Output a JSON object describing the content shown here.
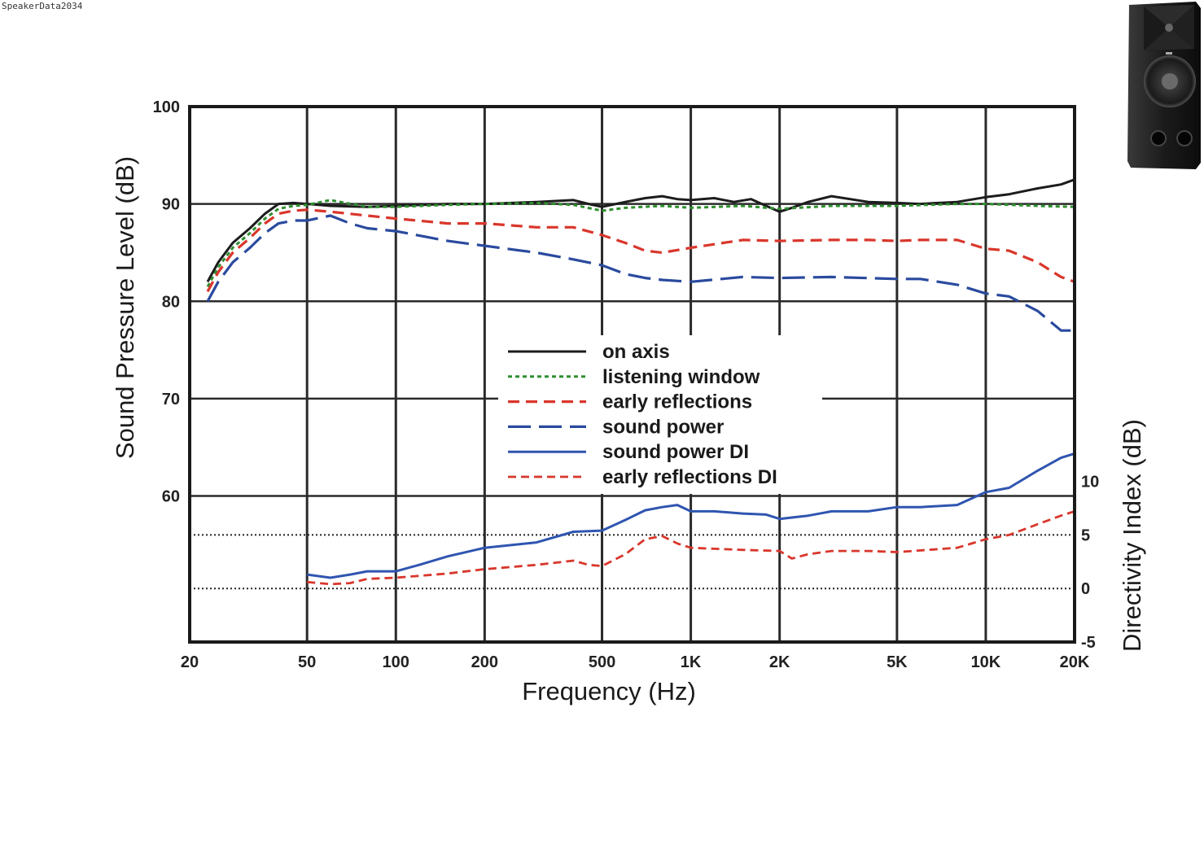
{
  "watermark": "SpeakerData2034",
  "colors": {
    "on_axis": "#1c1c1c",
    "listening_window": "#2f8f2f",
    "early_reflections": "#d9362b",
    "sound_power": "#2a4a9e",
    "sound_power_di": "#2f55b0",
    "early_reflections_di": "#d9362b",
    "grid": "#2a2a2a"
  },
  "chart_data": {
    "type": "line",
    "title": "",
    "xlabel": "Frequency (Hz)",
    "ylabel": "Sound Pressure Level (dB)",
    "y2label": "Directivity Index (dB)",
    "xscale": "log",
    "xlim": [
      20,
      20000
    ],
    "ylim": [
      45,
      100
    ],
    "y2lim": [
      -5,
      45
    ],
    "grid": true,
    "legend_position": "center",
    "x_ticks": [
      20,
      50,
      100,
      200,
      500,
      1000,
      2000,
      5000,
      10000,
      20000
    ],
    "x_tick_labels": [
      "20",
      "50",
      "100",
      "200",
      "500",
      "1K",
      "2K",
      "5K",
      "10K",
      "20K"
    ],
    "y_ticks": [
      60,
      70,
      80,
      90,
      100
    ],
    "y_tick_labels": [
      "60",
      "70",
      "80",
      "90",
      "100"
    ],
    "y2_ticks": [
      -5,
      0,
      5,
      10
    ],
    "y2_tick_labels": [
      "-5",
      "0",
      "5",
      "10"
    ],
    "series": [
      {
        "name": "on axis",
        "axis": "left",
        "style": "solid",
        "x": [
          23,
          25,
          28,
          32,
          36,
          40,
          45,
          50,
          60,
          80,
          100,
          150,
          200,
          300,
          400,
          450,
          500,
          600,
          700,
          800,
          900,
          1000,
          1200,
          1400,
          1600,
          1800,
          2000,
          2200,
          2500,
          3000,
          4000,
          5000,
          6000,
          8000,
          10000,
          12000,
          15000,
          18000,
          20000
        ],
        "y": [
          82,
          84,
          86,
          87.5,
          89,
          90,
          90.1,
          90,
          89.8,
          89.7,
          89.8,
          90,
          90,
          90.2,
          90.4,
          90,
          89.7,
          90.2,
          90.6,
          90.8,
          90.5,
          90.4,
          90.6,
          90.2,
          90.5,
          89.8,
          89.2,
          89.6,
          90.2,
          90.8,
          90.2,
          90.1,
          90,
          90.2,
          90.7,
          91,
          91.6,
          92,
          92.5
        ]
      },
      {
        "name": "listening window",
        "axis": "left",
        "style": "dotted",
        "x": [
          23,
          25,
          28,
          32,
          36,
          40,
          45,
          50,
          60,
          80,
          100,
          150,
          200,
          300,
          400,
          500,
          600,
          800,
          1000,
          1500,
          2000,
          3000,
          5000,
          8000,
          10000,
          15000,
          20000
        ],
        "y": [
          81.5,
          83.5,
          85.5,
          87,
          88.5,
          89.5,
          89.8,
          89.9,
          90.4,
          89.7,
          89.7,
          89.9,
          90,
          90.1,
          89.9,
          89.3,
          89.6,
          89.8,
          89.6,
          89.8,
          89.5,
          89.8,
          89.8,
          90,
          90,
          89.8,
          89.7
        ]
      },
      {
        "name": "early reflections",
        "axis": "left",
        "style": "dashed",
        "x": [
          23,
          25,
          28,
          32,
          36,
          40,
          45,
          50,
          60,
          80,
          100,
          150,
          200,
          300,
          400,
          500,
          600,
          700,
          800,
          1000,
          1500,
          2000,
          3000,
          4000,
          5000,
          6000,
          8000,
          10000,
          12000,
          15000,
          18000,
          20000
        ],
        "y": [
          81,
          83,
          85,
          86.5,
          88,
          89,
          89.3,
          89.4,
          89.2,
          88.8,
          88.5,
          88,
          88,
          87.6,
          87.6,
          86.8,
          86,
          85.2,
          85,
          85.5,
          86.3,
          86.2,
          86.3,
          86.3,
          86.2,
          86.3,
          86.3,
          85.4,
          85.2,
          84,
          82.5,
          82
        ]
      },
      {
        "name": "sound power",
        "axis": "left",
        "style": "long-dashed",
        "x": [
          23,
          25,
          28,
          32,
          36,
          40,
          45,
          50,
          60,
          70,
          80,
          100,
          150,
          200,
          300,
          400,
          500,
          600,
          700,
          800,
          1000,
          1500,
          2000,
          3000,
          5000,
          6000,
          8000,
          10000,
          12000,
          15000,
          18000,
          20000
        ],
        "y": [
          80,
          82,
          84,
          85.5,
          87,
          88,
          88.3,
          88.3,
          88.8,
          88,
          87.5,
          87.2,
          86.2,
          85.7,
          85,
          84.3,
          83.7,
          82.8,
          82.4,
          82.2,
          82,
          82.5,
          82.4,
          82.5,
          82.3,
          82.3,
          81.7,
          80.8,
          80.5,
          79,
          77,
          77
        ]
      },
      {
        "name": "sound power DI",
        "axis": "right",
        "style": "solid",
        "x": [
          50,
          60,
          70,
          80,
          100,
          120,
          150,
          180,
          200,
          300,
          400,
          500,
          600,
          700,
          800,
          900,
          1000,
          1200,
          1500,
          1800,
          2000,
          2500,
          3000,
          4000,
          5000,
          6000,
          8000,
          10000,
          12000,
          15000,
          18000,
          20000
        ],
        "y": [
          1.3,
          1,
          1.3,
          1.6,
          1.6,
          2.2,
          3,
          3.5,
          3.8,
          4.3,
          5.3,
          5.4,
          6.4,
          7.3,
          7.6,
          7.8,
          7.2,
          7.2,
          7,
          6.9,
          6.5,
          6.8,
          7.2,
          7.2,
          7.6,
          7.6,
          7.8,
          9,
          9.4,
          11,
          12.2,
          12.6
        ]
      },
      {
        "name": "early reflections DI",
        "axis": "right",
        "style": "short-dashed",
        "x": [
          50,
          60,
          70,
          80,
          100,
          150,
          200,
          300,
          400,
          450,
          500,
          600,
          700,
          800,
          900,
          1000,
          1500,
          2000,
          2200,
          2500,
          3000,
          4000,
          5000,
          8000,
          10000,
          12000,
          15000,
          18000,
          20000
        ],
        "y": [
          0.6,
          0.4,
          0.5,
          0.9,
          1,
          1.4,
          1.8,
          2.2,
          2.6,
          2.2,
          2.1,
          3.2,
          4.6,
          4.9,
          4.2,
          3.8,
          3.6,
          3.5,
          2.8,
          3.2,
          3.5,
          3.5,
          3.4,
          3.8,
          4.6,
          5,
          6,
          6.8,
          7.2
        ]
      }
    ]
  }
}
